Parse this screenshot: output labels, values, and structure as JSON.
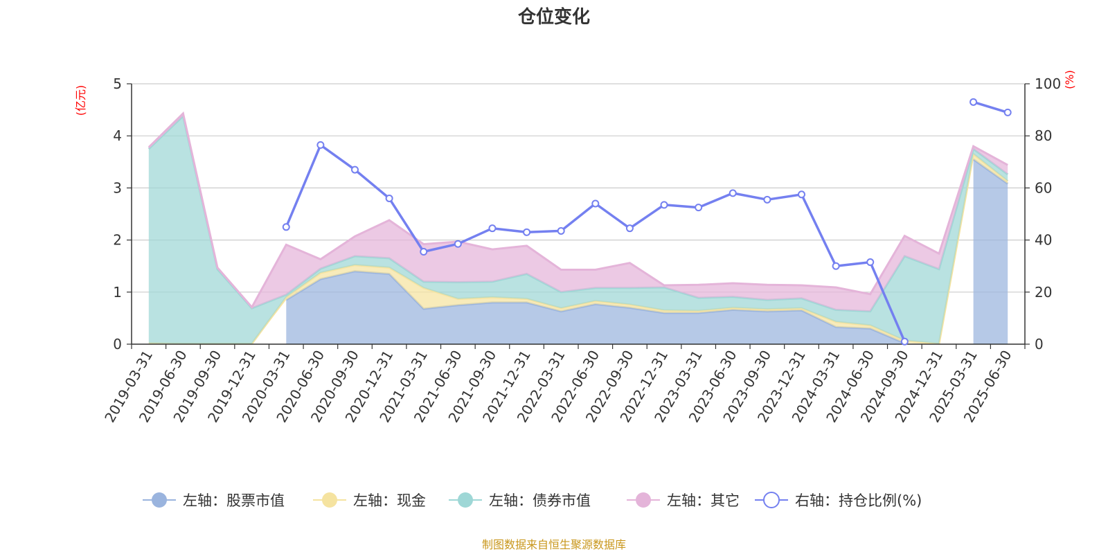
{
  "chart_data": {
    "type": "area",
    "title": "仓位变化",
    "left_axis_unit": "(亿元)",
    "right_axis_unit": "(%)",
    "left_ylim": [
      0,
      5
    ],
    "left_ticks": [
      "0",
      "1",
      "2",
      "3",
      "4",
      "5"
    ],
    "right_ylim": [
      0,
      100
    ],
    "right_ticks": [
      "0",
      "20",
      "40",
      "60",
      "80",
      "100"
    ],
    "grid": true,
    "legend_position": "bottom",
    "categories": [
      "2019-03-31",
      "2019-06-30",
      "2019-09-30",
      "2019-12-31",
      "2020-03-31",
      "2020-06-30",
      "2020-09-30",
      "2020-12-31",
      "2021-03-31",
      "2021-06-30",
      "2021-09-30",
      "2021-12-31",
      "2022-03-31",
      "2022-06-30",
      "2022-09-30",
      "2022-12-31",
      "2023-03-31",
      "2023-06-30",
      "2023-09-30",
      "2023-12-31",
      "2024-03-31",
      "2024-06-30",
      "2024-09-30",
      "2024-12-31",
      "2025-03-31",
      "2025-06-30"
    ],
    "series": [
      {
        "name": "左轴：股票市值",
        "axis": "left",
        "kind": "stacked-area",
        "color": "#9ab4de",
        "values": [
          null,
          null,
          null,
          null,
          0.85,
          1.25,
          1.4,
          1.35,
          0.68,
          0.75,
          0.8,
          0.8,
          0.63,
          0.77,
          0.7,
          0.6,
          0.6,
          0.66,
          0.63,
          0.65,
          0.33,
          0.3,
          0.02,
          null,
          3.55,
          3.08
        ]
      },
      {
        "name": "左轴：现金",
        "axis": "left",
        "kind": "stacked-area",
        "color": "#f5e3a0",
        "values": [
          0.02,
          0.01,
          0.01,
          0.01,
          0.05,
          0.12,
          0.12,
          0.12,
          0.4,
          0.12,
          0.1,
          0.07,
          0.06,
          0.06,
          0.06,
          0.05,
          0.04,
          0.04,
          0.04,
          0.04,
          0.1,
          0.06,
          0.05,
          0.01,
          0.1,
          0.05
        ]
      },
      {
        "name": "左轴：债券市值",
        "axis": "left",
        "kind": "stacked-area",
        "color": "#9ed7d6",
        "values": [
          3.73,
          4.37,
          1.43,
          0.68,
          0.05,
          0.08,
          0.17,
          0.18,
          0.12,
          0.32,
          0.3,
          0.48,
          0.31,
          0.25,
          0.32,
          0.44,
          0.25,
          0.21,
          0.18,
          0.19,
          0.23,
          0.27,
          1.62,
          1.43,
          0.1,
          0.13
        ]
      },
      {
        "name": "左轴：其它",
        "axis": "left",
        "kind": "stacked-area",
        "color": "#e4b4d9",
        "values": [
          0.03,
          0.05,
          0.03,
          0.02,
          0.96,
          0.18,
          0.38,
          0.73,
          0.72,
          0.78,
          0.62,
          0.54,
          0.43,
          0.35,
          0.48,
          0.04,
          0.25,
          0.26,
          0.29,
          0.25,
          0.43,
          0.33,
          0.39,
          0.3,
          0.05,
          0.18
        ]
      },
      {
        "name": "右轴：持仓比例(%)",
        "axis": "right",
        "kind": "line",
        "color": "#7480f0",
        "values": [
          null,
          null,
          null,
          null,
          45,
          76.5,
          67,
          56,
          35.5,
          38.5,
          44.5,
          43,
          43.5,
          54,
          44.5,
          53.5,
          52.5,
          58,
          55.5,
          57.5,
          30,
          31.5,
          1,
          null,
          93,
          89
        ]
      }
    ]
  },
  "source_note": "制图数据来自恒生聚源数据库"
}
